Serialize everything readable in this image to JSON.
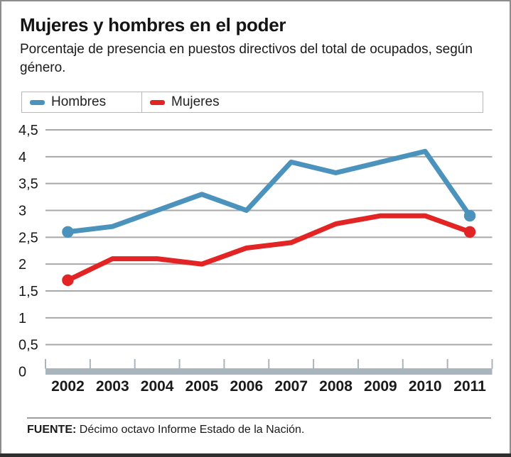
{
  "title": "Mujeres y hombres en el poder",
  "subtitle": "Porcentaje de presencia en puestos directivos del total de ocupados, según género.",
  "legend": {
    "hombres_label": "Hombres",
    "mujeres_label": "Mujeres"
  },
  "source": {
    "label": "FUENTE:",
    "text": " Décimo octavo Informe Estado de la Nación."
  },
  "colors": {
    "hombres_line": "#4b93bd",
    "mujeres_line": "#e22424",
    "gridline": "#a8a8a8",
    "axis_bar": "#a9b5bd",
    "text": "#1a1a1a",
    "frame_border": "#8d8d8d",
    "bottom_bar": "#2e2e2e"
  },
  "chart_data": {
    "type": "line",
    "title": "Mujeres y hombres en el poder",
    "xlabel": "",
    "ylabel": "",
    "categories": [
      "2002",
      "2003",
      "2004",
      "2005",
      "2006",
      "2007",
      "2008",
      "2009",
      "2010",
      "2011"
    ],
    "series": [
      {
        "name": "Hombres",
        "color": "#4b93bd",
        "values": [
          2.6,
          2.7,
          3.0,
          3.3,
          3.0,
          3.9,
          3.7,
          3.9,
          4.1,
          2.9
        ]
      },
      {
        "name": "Mujeres",
        "color": "#e22424",
        "values": [
          1.7,
          2.1,
          2.1,
          2.0,
          2.3,
          2.4,
          2.75,
          2.9,
          2.9,
          2.6
        ]
      }
    ],
    "ylim": [
      0,
      4.5
    ],
    "y_ticks": [
      {
        "value": 0,
        "label": "0"
      },
      {
        "value": 0.5,
        "label": "0,5"
      },
      {
        "value": 1,
        "label": "1"
      },
      {
        "value": 1.5,
        "label": "1,5"
      },
      {
        "value": 2,
        "label": "2"
      },
      {
        "value": 2.5,
        "label": "2,5"
      },
      {
        "value": 3,
        "label": "3"
      },
      {
        "value": 3.5,
        "label": "3,5"
      },
      {
        "value": 4,
        "label": "4"
      },
      {
        "value": 4.5,
        "label": "4,5"
      }
    ],
    "grid": true,
    "legend_position": "top",
    "markers": "endpoints-only"
  }
}
